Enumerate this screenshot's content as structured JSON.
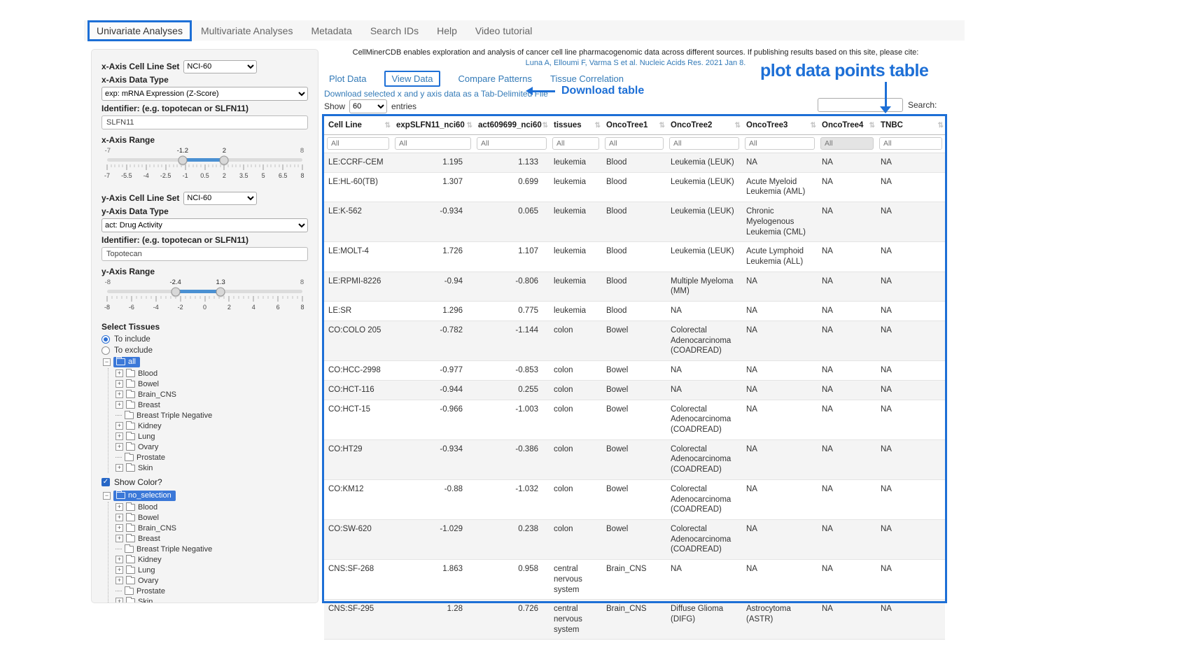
{
  "colors": {
    "annotation_blue": "#1d6fd6",
    "link_blue": "#337ab7",
    "tree_selected_bg": "#3b78d8",
    "slider_fill": "#4a90d2"
  },
  "nav": {
    "tabs": [
      {
        "label": "Univariate Analyses",
        "active": true
      },
      {
        "label": "Multivariate Analyses",
        "active": false
      },
      {
        "label": "Metadata",
        "active": false
      },
      {
        "label": "Search IDs",
        "active": false
      },
      {
        "label": "Help",
        "active": false
      },
      {
        "label": "Video tutorial",
        "active": false
      }
    ]
  },
  "sidebar": {
    "x_axis": {
      "set_label": "x-Axis Cell Line Set",
      "set_value": "NCI-60",
      "type_label": "x-Axis Data Type",
      "type_value": "exp: mRNA Expression (Z-Score)",
      "id_label": "Identifier: (e.g. topotecan or SLFN11)",
      "id_value": "SLFN11",
      "range_label": "x-Axis Range",
      "slider": {
        "min": -7,
        "max": 8,
        "low": -1.2,
        "high": 2,
        "min_label": "-7",
        "max_label": "8",
        "low_label": "-1.2",
        "high_label": "2",
        "ticks": [
          "-7",
          "-5.5",
          "-4",
          "-2.5",
          "-1",
          "0.5",
          "2",
          "3.5",
          "5",
          "6.5",
          "8"
        ]
      }
    },
    "y_axis": {
      "set_label": "y-Axis Cell Line Set",
      "set_value": "NCI-60",
      "type_label": "y-Axis Data Type",
      "type_value": "act: Drug Activity",
      "id_label": "Identifier: (e.g. topotecan or SLFN11)",
      "id_value": "Topotecan",
      "range_label": "y-Axis Range",
      "slider": {
        "min": -8,
        "max": 8,
        "low": -2.4,
        "high": 1.3,
        "min_label": "-8",
        "max_label": "8",
        "low_label": "-2.4",
        "high_label": "1.3",
        "ticks": [
          "-8",
          "-6",
          "-4",
          "-2",
          "0",
          "2",
          "4",
          "6",
          "8"
        ]
      }
    },
    "tissues": {
      "section_label": "Select Tissues",
      "radio_include": "To include",
      "radio_exclude": "To exclude",
      "include_selected": true,
      "show_color_label": "Show Color?",
      "show_color_checked": true,
      "trees": [
        {
          "root": "all",
          "items": [
            {
              "label": "Blood",
              "expandable": true
            },
            {
              "label": "Bowel",
              "expandable": true
            },
            {
              "label": "Brain_CNS",
              "expandable": true
            },
            {
              "label": "Breast",
              "expandable": true
            },
            {
              "label": "Breast Triple Negative",
              "expandable": false
            },
            {
              "label": "Kidney",
              "expandable": true
            },
            {
              "label": "Lung",
              "expandable": true
            },
            {
              "label": "Ovary",
              "expandable": true
            },
            {
              "label": "Prostate",
              "expandable": false
            },
            {
              "label": "Skin",
              "expandable": true
            }
          ]
        },
        {
          "root": "no_selection",
          "items": [
            {
              "label": "Blood",
              "expandable": true
            },
            {
              "label": "Bowel",
              "expandable": true
            },
            {
              "label": "Brain_CNS",
              "expandable": true
            },
            {
              "label": "Breast",
              "expandable": true
            },
            {
              "label": "Breast Triple Negative",
              "expandable": false
            },
            {
              "label": "Kidney",
              "expandable": true
            },
            {
              "label": "Lung",
              "expandable": true
            },
            {
              "label": "Ovary",
              "expandable": true
            },
            {
              "label": "Prostate",
              "expandable": false
            },
            {
              "label": "Skin",
              "expandable": true
            }
          ]
        }
      ]
    }
  },
  "main": {
    "citation_text": "CellMinerCDB enables exploration and analysis of cancer cell line pharmacogenomic data across different sources. If publishing results based on this site, please cite:",
    "citation_link": "Luna A, Elloumi F, Varma S et al. Nucleic Acids Res. 2021 Jan 8.",
    "tabs": [
      {
        "label": "Plot Data",
        "active": false
      },
      {
        "label": "View Data",
        "active": true
      },
      {
        "label": "Compare Patterns",
        "active": false
      },
      {
        "label": "Tissue Correlation",
        "active": false
      }
    ],
    "download_link": "Download selected x and y axis data as a Tab-Delimited File",
    "show_label": "Show",
    "entries_value": "60",
    "entries_suffix": "entries",
    "search_label": "Search:",
    "table": {
      "filter_placeholder": "All",
      "columns": [
        "Cell Line",
        "expSLFN11_nci60",
        "act609699_nci60",
        "tissues",
        "OncoTree1",
        "OncoTree2",
        "OncoTree3",
        "OncoTree4",
        "TNBC"
      ],
      "rows": [
        [
          "LE:CCRF-CEM",
          "1.195",
          "1.133",
          "leukemia",
          "Blood",
          "Leukemia (LEUK)",
          "NA",
          "NA",
          "NA"
        ],
        [
          "LE:HL-60(TB)",
          "1.307",
          "0.699",
          "leukemia",
          "Blood",
          "Leukemia (LEUK)",
          "Acute Myeloid Leukemia (AML)",
          "NA",
          "NA"
        ],
        [
          "LE:K-562",
          "-0.934",
          "0.065",
          "leukemia",
          "Blood",
          "Leukemia (LEUK)",
          "Chronic Myelogenous Leukemia (CML)",
          "NA",
          "NA"
        ],
        [
          "LE:MOLT-4",
          "1.726",
          "1.107",
          "leukemia",
          "Blood",
          "Leukemia (LEUK)",
          "Acute Lymphoid Leukemia (ALL)",
          "NA",
          "NA"
        ],
        [
          "LE:RPMI-8226",
          "-0.94",
          "-0.806",
          "leukemia",
          "Blood",
          "Multiple Myeloma (MM)",
          "NA",
          "NA",
          "NA"
        ],
        [
          "LE:SR",
          "1.296",
          "0.775",
          "leukemia",
          "Blood",
          "NA",
          "NA",
          "NA",
          "NA"
        ],
        [
          "CO:COLO 205",
          "-0.782",
          "-1.144",
          "colon",
          "Bowel",
          "Colorectal Adenocarcinoma (COADREAD)",
          "NA",
          "NA",
          "NA"
        ],
        [
          "CO:HCC-2998",
          "-0.977",
          "-0.853",
          "colon",
          "Bowel",
          "NA",
          "NA",
          "NA",
          "NA"
        ],
        [
          "CO:HCT-116",
          "-0.944",
          "0.255",
          "colon",
          "Bowel",
          "NA",
          "NA",
          "NA",
          "NA"
        ],
        [
          "CO:HCT-15",
          "-0.966",
          "-1.003",
          "colon",
          "Bowel",
          "Colorectal Adenocarcinoma (COADREAD)",
          "NA",
          "NA",
          "NA"
        ],
        [
          "CO:HT29",
          "-0.934",
          "-0.386",
          "colon",
          "Bowel",
          "Colorectal Adenocarcinoma (COADREAD)",
          "NA",
          "NA",
          "NA"
        ],
        [
          "CO:KM12",
          "-0.88",
          "-1.032",
          "colon",
          "Bowel",
          "Colorectal Adenocarcinoma (COADREAD)",
          "NA",
          "NA",
          "NA"
        ],
        [
          "CO:SW-620",
          "-1.029",
          "0.238",
          "colon",
          "Bowel",
          "Colorectal Adenocarcinoma (COADREAD)",
          "NA",
          "NA",
          "NA"
        ],
        [
          "CNS:SF-268",
          "1.863",
          "0.958",
          "central nervous system",
          "Brain_CNS",
          "NA",
          "NA",
          "NA",
          "NA"
        ],
        [
          "CNS:SF-295",
          "1.28",
          "0.726",
          "central nervous system",
          "Brain_CNS",
          "Diffuse Glioma (DIFG)",
          "Astrocytoma (ASTR)",
          "NA",
          "NA"
        ]
      ]
    }
  },
  "annotations": {
    "plot_table_label": "plot data points table",
    "download_table_label": "Download table"
  }
}
